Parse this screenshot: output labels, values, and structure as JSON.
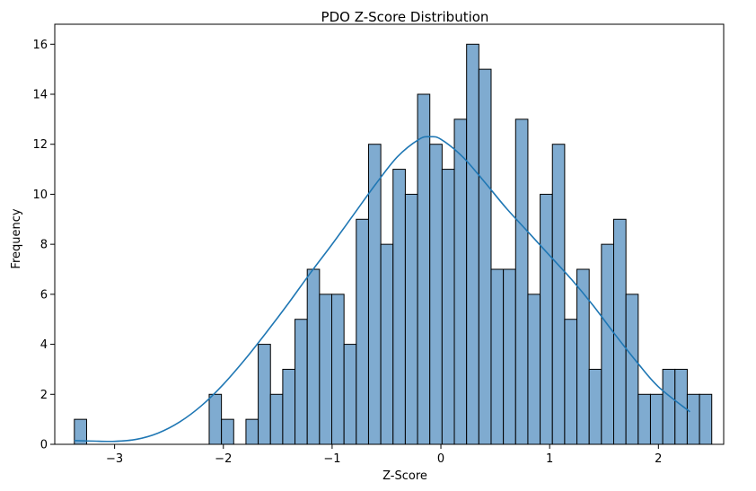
{
  "chart_data": {
    "type": "bar",
    "title": "PDO Z-Score Distribution",
    "xlabel": "Z-Score",
    "ylabel": "Frequency",
    "xlim": [
      -3.55,
      2.6
    ],
    "ylim": [
      0,
      16.8
    ],
    "xticks": [
      -3,
      -2,
      -1,
      0,
      1,
      2
    ],
    "yticks": [
      0,
      2,
      4,
      6,
      8,
      10,
      12,
      14,
      16
    ],
    "grid": false,
    "bin_start": -3.37,
    "bin_width": 0.1127,
    "counts": [
      1,
      0,
      0,
      0,
      0,
      0,
      0,
      0,
      0,
      0,
      0,
      2,
      1,
      0,
      1,
      4,
      2,
      3,
      5,
      7,
      6,
      6,
      4,
      9,
      12,
      8,
      11,
      10,
      14,
      12,
      11,
      13,
      16,
      15,
      7,
      7,
      13,
      6,
      10,
      12,
      5,
      7,
      3,
      8,
      9,
      6,
      2,
      2,
      3,
      3,
      2,
      2
    ],
    "bar_color": "#7fabd0",
    "bar_edge_color": "#000000",
    "kde": {
      "x": [
        -3.37,
        -3.2,
        -3.0,
        -2.8,
        -2.6,
        -2.4,
        -2.2,
        -2.0,
        -1.8,
        -1.6,
        -1.4,
        -1.2,
        -1.0,
        -0.8,
        -0.6,
        -0.4,
        -0.2,
        -0.1,
        0.0,
        0.2,
        0.4,
        0.6,
        0.8,
        1.0,
        1.2,
        1.4,
        1.6,
        1.8,
        2.0,
        2.29
      ],
      "y": [
        0.15,
        0.13,
        0.12,
        0.2,
        0.45,
        0.9,
        1.55,
        2.4,
        3.4,
        4.5,
        5.65,
        6.85,
        8.0,
        9.2,
        10.4,
        11.5,
        12.2,
        12.3,
        12.2,
        11.5,
        10.5,
        9.45,
        8.5,
        7.55,
        6.6,
        5.55,
        4.4,
        3.3,
        2.3,
        1.3
      ],
      "color": "#1f77b4"
    }
  }
}
